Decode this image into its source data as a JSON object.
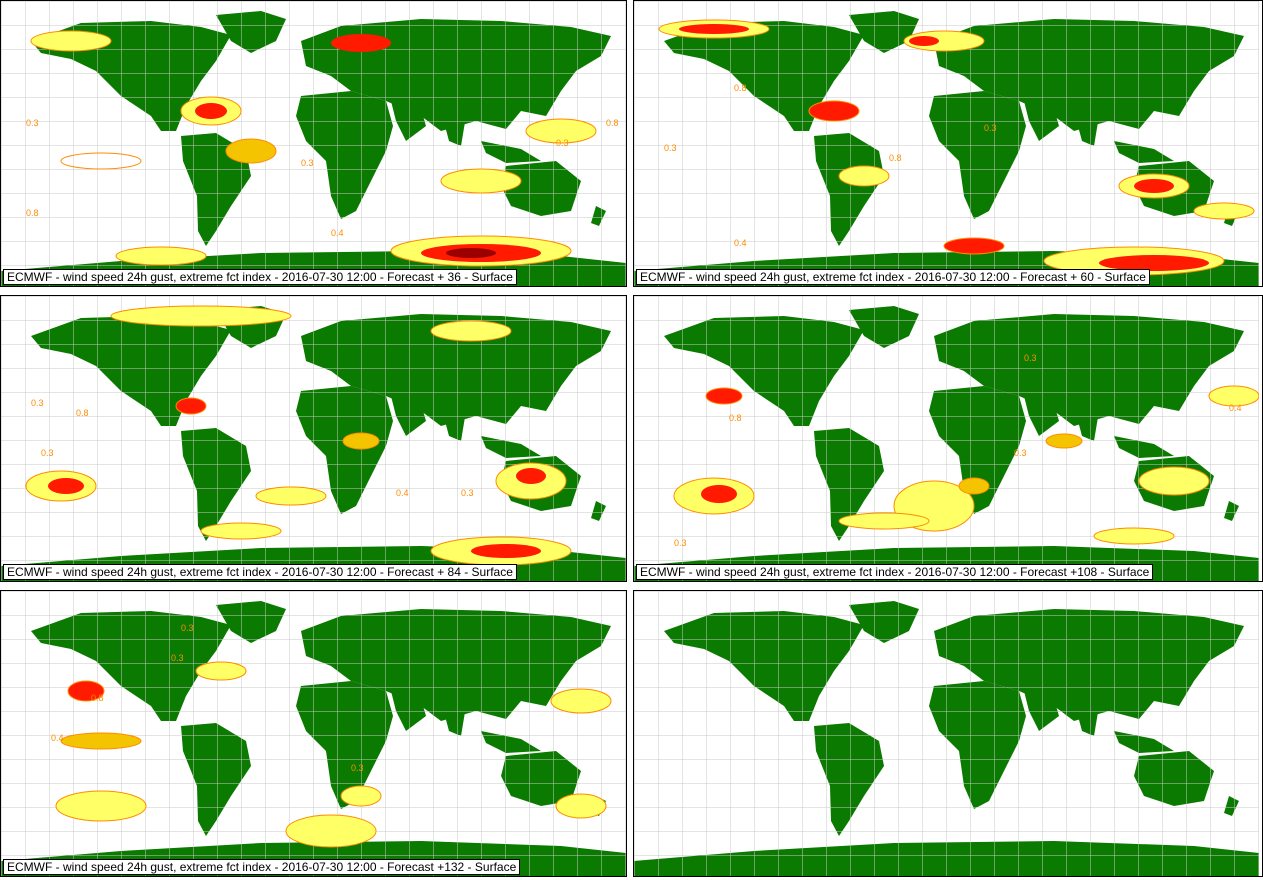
{
  "colors": {
    "land": "#0b7a00",
    "ocean": "#ffffff",
    "grid": "#c8c8c8",
    "contour_light": "#ffff66",
    "contour_mid": "#f5c400",
    "contour_line": "#ff8c00",
    "contour_high": "#ff1a00",
    "contour_max": "#9b0000"
  },
  "panels": [
    {
      "id": "p1",
      "title": "ECMWF - wind speed 24h gust, extreme fct index - 2016-07-30 12:00 - Forecast + 36 - Surface",
      "labels": [
        "0.3",
        "0.8",
        "0.4",
        "0.3",
        "0.8",
        "0.3"
      ]
    },
    {
      "id": "p2",
      "title": "ECMWF - wind speed 24h gust, extreme fct index - 2016-07-30 12:00 - Forecast + 60 - Surface",
      "labels": [
        "0.8",
        "0.3",
        "0.3",
        "0.8",
        "0.4"
      ]
    },
    {
      "id": "p3",
      "title": "ECMWF - wind speed 24h gust, extreme fct index - 2016-07-30 12:00 - Forecast + 84 - Surface",
      "labels": [
        "0.3",
        "0.8",
        "0.3",
        "0.4",
        "0.3"
      ]
    },
    {
      "id": "p4",
      "title": "ECMWF - wind speed 24h gust, extreme fct index - 2016-07-30 12:00 - Forecast +108 - Surface",
      "labels": [
        "0.3",
        "0.8",
        "0.3",
        "0.3",
        "0.4"
      ]
    },
    {
      "id": "p5",
      "title": "ECMWF - wind speed 24h gust, extreme fct index - 2016-07-30 12:00 - Forecast +132 - Surface",
      "labels": [
        "0.3",
        "0.8",
        "0.3",
        "0.3",
        "0.4"
      ]
    },
    {
      "id": "p6",
      "title": "",
      "labels": []
    }
  ]
}
